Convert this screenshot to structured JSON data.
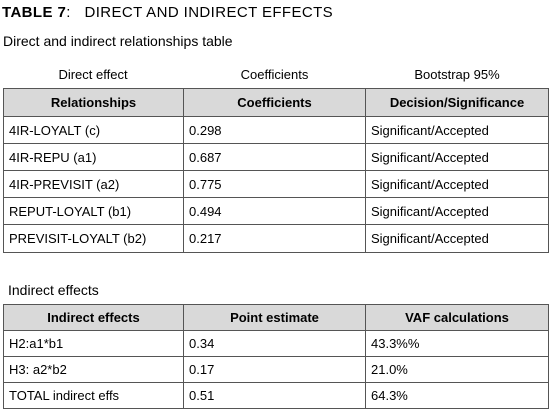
{
  "header": {
    "table_number": "TABLE 7",
    "separator": ":",
    "title": "DIRECT AND INDIRECT EFFECTS",
    "subtitle": "Direct and indirect relationships table"
  },
  "direct": {
    "caption": [
      "Direct effect",
      "Coefficients",
      "Bootstrap 95%"
    ],
    "columns": [
      "Relationships",
      "Coefficients",
      "Decision/Significance"
    ],
    "rows": [
      [
        "4IR-LOYALT (c)",
        "0.298",
        "Significant/Accepted"
      ],
      [
        "4IR-REPU (a1)",
        "0.687",
        "Significant/Accepted"
      ],
      [
        "4IR-PREVISIT (a2)",
        "0.775",
        "Significant/Accepted"
      ],
      [
        "REPUT-LOYALT (b1)",
        "0.494",
        "Significant/Accepted"
      ],
      [
        "PREVISIT-LOYALT (b2)",
        "0.217",
        "Significant/Accepted"
      ]
    ]
  },
  "indirect": {
    "title": "Indirect effects",
    "columns": [
      "Indirect effects",
      "Point estimate",
      "VAF calculations"
    ],
    "rows": [
      [
        "H2:a1*b1",
        "0.34",
        "43.3%%"
      ],
      [
        "H3: a2*b2",
        "0.17",
        "21.0%"
      ],
      [
        "TOTAL indirect effs",
        "0.51",
        "64.3%"
      ]
    ]
  }
}
